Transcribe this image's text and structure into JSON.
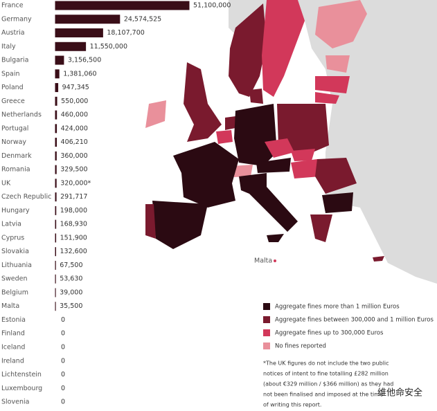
{
  "chart_data": {
    "type": "bar",
    "orientation": "horizontal",
    "color": "#3a0e18",
    "categories": [
      "France",
      "Germany",
      "Austria",
      "Italy",
      "Bulgaria",
      "Spain",
      "Poland",
      "Greece",
      "Netherlands",
      "Portugal",
      "Norway",
      "Denmark",
      "Romania",
      "UK",
      "Czech Republic",
      "Hungary",
      "Latvia",
      "Cyprus",
      "Slovakia",
      "Lithuania",
      "Sweden",
      "Belgium",
      "Malta",
      "Estonia",
      "Finland",
      "Iceland",
      "Ireland",
      "Lichtenstein",
      "Luxembourg",
      "Slovenia"
    ],
    "values": [
      51100000,
      24574525,
      18107700,
      11550000,
      3156500,
      1381060,
      947345,
      550000,
      460000,
      424000,
      406210,
      360000,
      329500,
      320000,
      291717,
      198000,
      168930,
      151900,
      132600,
      67500,
      53630,
      39000,
      35500,
      0,
      0,
      0,
      0,
      0,
      0,
      0
    ],
    "value_labels": [
      "51,100,000",
      "24,574,525",
      "18,107,700",
      "11,550,000",
      "3,156,500",
      "1,381,060",
      "947,345",
      "550,000",
      "460,000",
      "424,000",
      "406,210",
      "360,000",
      "329,500",
      "320,000*",
      "291,717",
      "198,000",
      "168,930",
      "151,900",
      "132,600",
      "67,500",
      "53,630",
      "39,000",
      "35,500",
      "0",
      "0",
      "0",
      "0",
      "0",
      "0",
      "0"
    ],
    "map_label": "Malta",
    "legend": [
      {
        "label": "Aggregate fines more than 1 million Euros",
        "color": "#2b0a12"
      },
      {
        "label": "Aggregate fines between 300,000 and 1 million Euros",
        "color": "#7a1a2e"
      },
      {
        "label": "Aggregate fines up to 300,000 Euros",
        "color": "#d2385a"
      },
      {
        "label": "No fines reported",
        "color": "#e9909b"
      }
    ],
    "footnote": [
      "*The UK figures do not include the two public",
      "notices of intent to fine totalling £282 million",
      "(about €329 million / $366 million) as they had",
      "not been finalised and imposed at the time",
      "of writing this report."
    ],
    "watermark": "维他命安全"
  }
}
